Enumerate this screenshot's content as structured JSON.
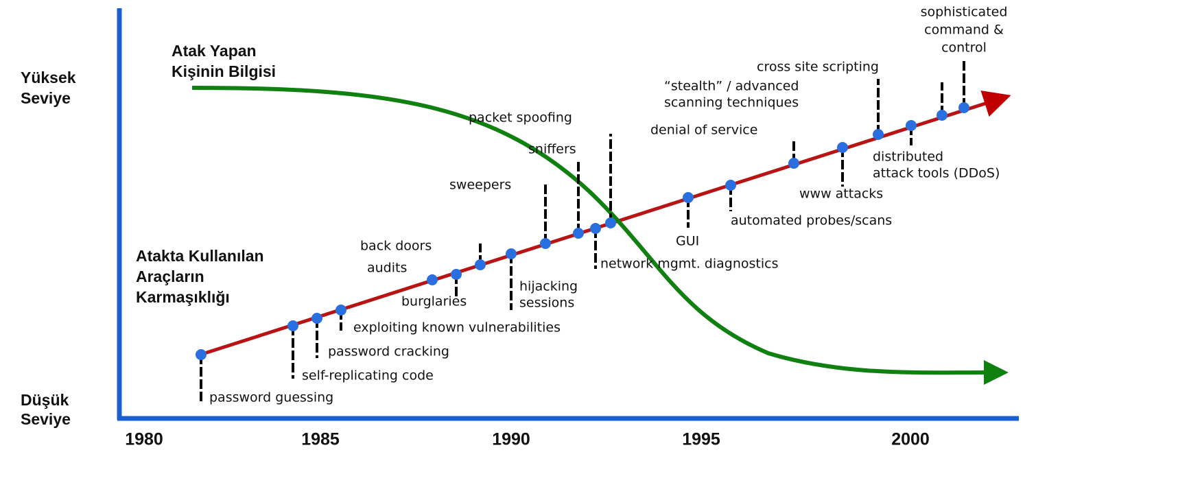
{
  "axis": {
    "high": [
      "Yüksek",
      "Seviye"
    ],
    "low": [
      "Düşük",
      "Seviye"
    ],
    "years": [
      "1980",
      "1985",
      "1990",
      "1995",
      "2000"
    ]
  },
  "knowledge_title": [
    "Atak Yapan",
    "Kişinin Bilgisi"
  ],
  "complexity_title": [
    "Atakta Kullanılan",
    "Araçların",
    "Karmaşıklığı"
  ],
  "events": [
    {
      "label": [
        "password guessing"
      ]
    },
    {
      "label": [
        "self-replicating code"
      ]
    },
    {
      "label": [
        "password cracking"
      ]
    },
    {
      "label": [
        "exploiting known vulnerabilities"
      ]
    },
    {
      "label": [
        "audits"
      ]
    },
    {
      "label": [
        "burglaries"
      ]
    },
    {
      "label": [
        "back doors"
      ]
    },
    {
      "label": [
        "hijacking",
        "sessions"
      ]
    },
    {
      "label": [
        "sweepers"
      ]
    },
    {
      "label": [
        "sniffers"
      ]
    },
    {
      "label": [
        "network mgmt. diagnostics"
      ]
    },
    {
      "label": [
        "packet spoofing"
      ]
    },
    {
      "label": [
        "GUI"
      ]
    },
    {
      "label": [
        "automated probes/scans"
      ]
    },
    {
      "label": [
        "denial of service"
      ]
    },
    {
      "label": [
        "www attacks"
      ]
    },
    {
      "label": [
        "“stealth” / advanced",
        "scanning techniques"
      ]
    },
    {
      "label": [
        "distributed",
        "attack tools (DDoS)"
      ]
    },
    {
      "label": [
        "cross site scripting"
      ]
    },
    {
      "label": [
        "sophisticated",
        "command &",
        "control"
      ]
    }
  ]
}
